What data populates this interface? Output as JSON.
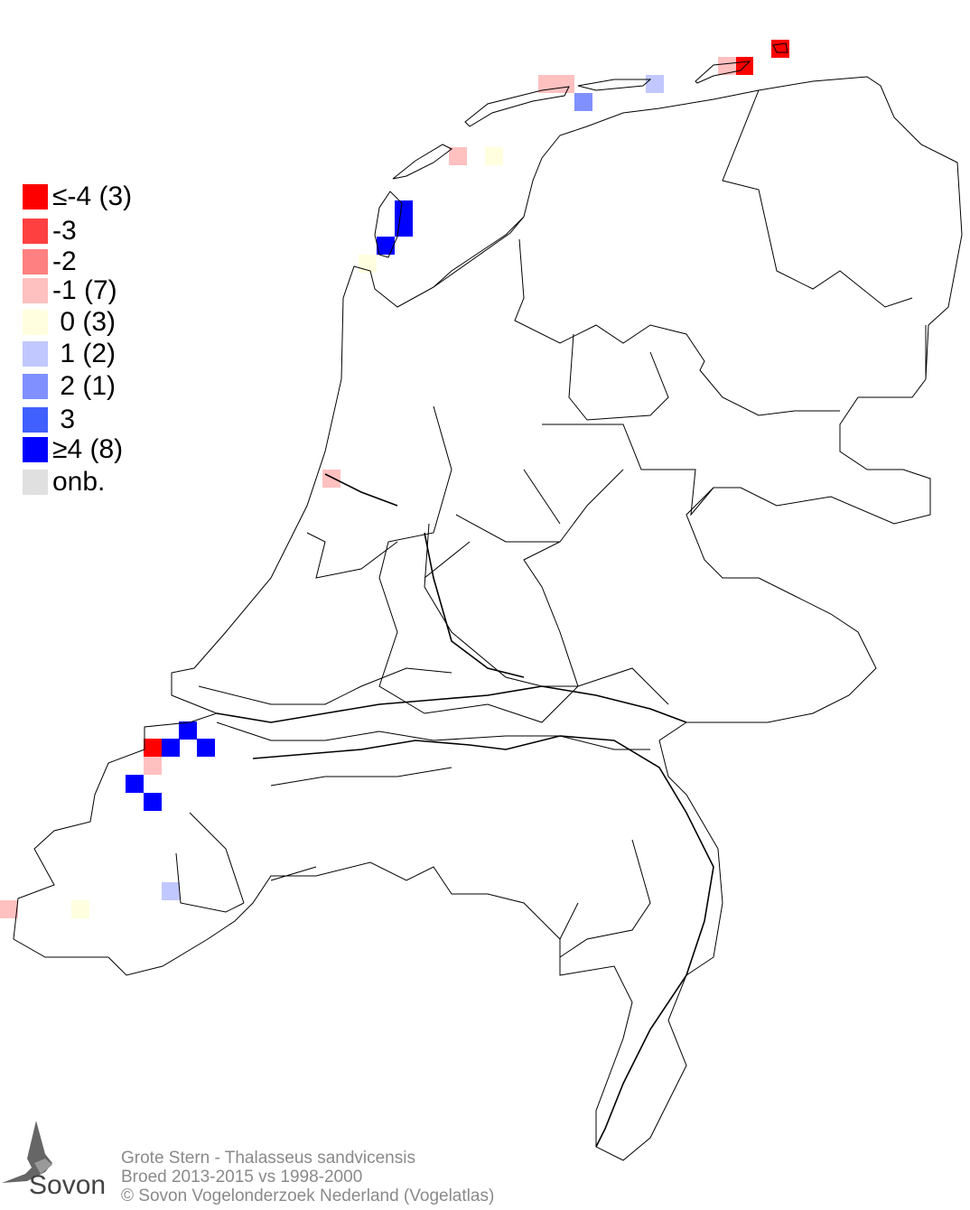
{
  "legend": [
    {
      "label": "≤-4 (3)",
      "value": -4,
      "color": "#ff0000"
    },
    {
      "label": "-3",
      "value": -3,
      "color": "#ff4040"
    },
    {
      "label": "-2",
      "value": -2,
      "color": "#ff8080"
    },
    {
      "label": "-1 (7)",
      "value": -1,
      "color": "#ffc0c0"
    },
    {
      "label": " 0 (3)",
      "value": 0,
      "color": "#ffffe0"
    },
    {
      "label": " 1 (2)",
      "value": 1,
      "color": "#c0c8ff"
    },
    {
      "label": " 2 (1)",
      "value": 2,
      "color": "#8090ff"
    },
    {
      "label": " 3",
      "value": 3,
      "color": "#4060ff"
    },
    {
      "label": "≥4 (8)",
      "value": 4,
      "color": "#0000ff"
    },
    {
      "label": "onb.",
      "value": null,
      "color": "#e0e0e0"
    }
  ],
  "cells": [
    -4,
    -4,
    -4,
    -1,
    -1,
    -1,
    -1,
    -1,
    -1,
    -1,
    0,
    0,
    0,
    1,
    1,
    2,
    4,
    4,
    4,
    4,
    4,
    4,
    4,
    4
  ],
  "caption": {
    "line1": "Grote Stern - Thalasseus sandvicensis",
    "line2": "Broed 2013-2015 vs 1998-2000",
    "line3": "© Sovon Vogelonderzoek Nederland (Vogelatlas)"
  },
  "logo": {
    "text": "Sovon"
  }
}
